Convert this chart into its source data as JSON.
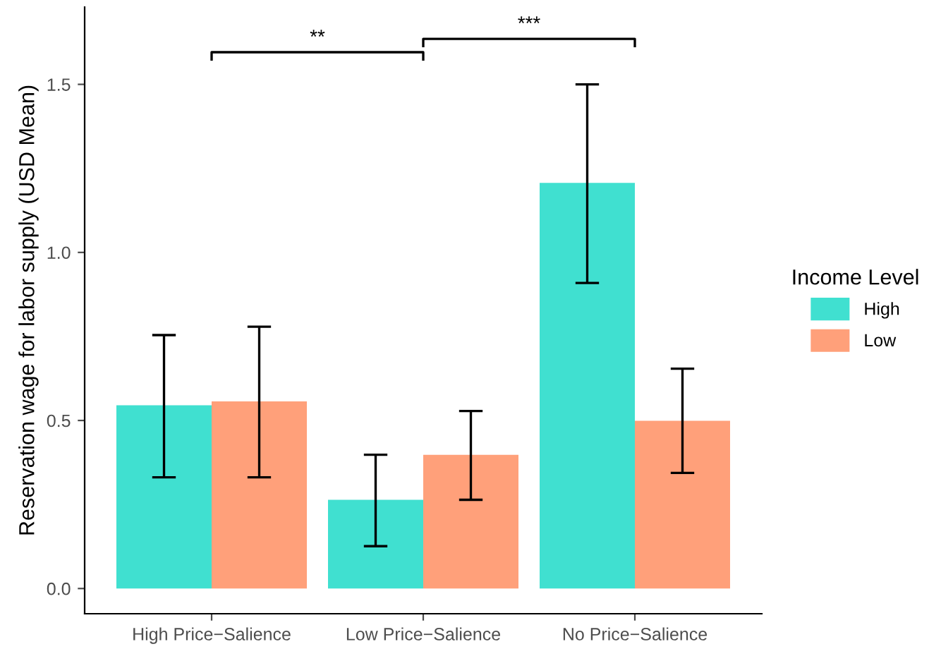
{
  "chart_data": {
    "type": "bar",
    "ylabel": "Reservation wage for labor supply (USD Mean)",
    "legend_title": "Income Level",
    "categories": [
      "High Price−Salience",
      "Low Price−Salience",
      "No Price−Salience"
    ],
    "series": [
      {
        "name": "High",
        "color": "#40e0d0",
        "values": [
          0.545,
          0.264,
          1.207
        ],
        "errors": [
          [
            0.331,
            0.754
          ],
          [
            0.126,
            0.398
          ],
          [
            0.909,
            1.5
          ]
        ]
      },
      {
        "name": "Low",
        "color": "#ffa07a",
        "values": [
          0.557,
          0.398,
          0.499
        ],
        "errors": [
          [
            0.331,
            0.779
          ],
          [
            0.264,
            0.528
          ],
          [
            0.344,
            0.654
          ]
        ]
      }
    ],
    "ylim": [
      -0.075,
      1.73
    ],
    "yticks": [
      {
        "value": 0,
        "label": "0.0"
      },
      0.5,
      {
        "value": 1,
        "label": "1.0"
      },
      1.5
    ],
    "annotations": [
      "**",
      "***"
    ],
    "grid": false,
    "legend": "right"
  }
}
